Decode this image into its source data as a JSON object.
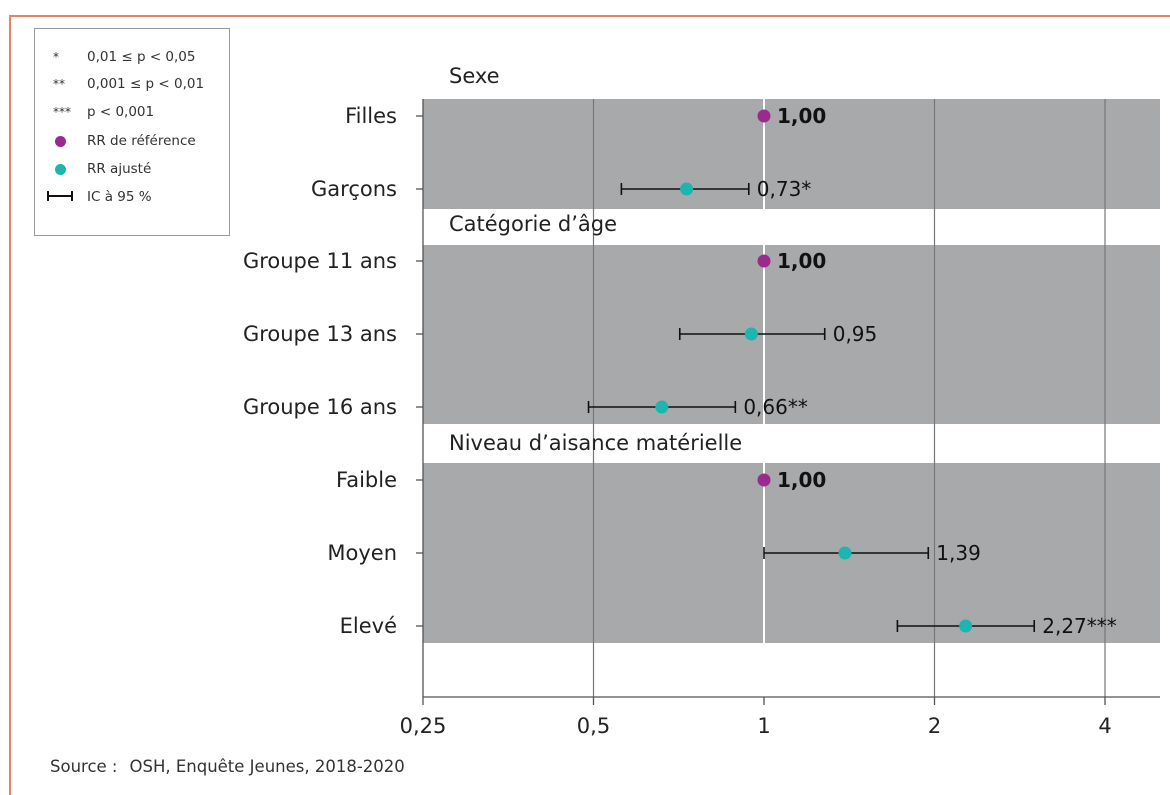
{
  "legend": {
    "items": [
      {
        "key": "*",
        "label": "0,01 ≤ p < 0,05"
      },
      {
        "key": "**",
        "label": "0,001 ≤ p < 0,01"
      },
      {
        "key": "***",
        "label": "p < 0,001"
      },
      {
        "key": "dot-ref",
        "label": "RR de référence"
      },
      {
        "key": "dot-adj",
        "label": "RR ajusté"
      },
      {
        "key": "ci",
        "label": "IC à 95 %"
      }
    ]
  },
  "source": {
    "prefix": "Source :",
    "text": "OSH, Enquête Jeunes, 2018-2020"
  },
  "colors": {
    "reference": "#9b2a8e",
    "adjusted": "#1db5b0",
    "band": "#a8a9ab",
    "frame": "#e8826a"
  },
  "chart_data": {
    "type": "scatter",
    "x_scale": "log2",
    "xlim": [
      0.25,
      5.2
    ],
    "x_ticks": [
      {
        "value": 0.25,
        "label": "0,25"
      },
      {
        "value": 0.5,
        "label": "0,5"
      },
      {
        "value": 1,
        "label": "1"
      },
      {
        "value": 2,
        "label": "2"
      },
      {
        "value": 4,
        "label": "4"
      }
    ],
    "groups": [
      {
        "title": "Sexe",
        "rows": [
          {
            "label": "Filles",
            "rr": 1.0,
            "ci": null,
            "text": "1,00",
            "reference": true
          },
          {
            "label": "Garçons",
            "rr": 0.73,
            "ci": [
              0.56,
              0.94
            ],
            "text": "0,73*",
            "reference": false
          }
        ]
      },
      {
        "title": "Catégorie d’âge",
        "rows": [
          {
            "label": "Groupe 11 ans",
            "rr": 1.0,
            "ci": null,
            "text": "1,00",
            "reference": true
          },
          {
            "label": "Groupe 13 ans",
            "rr": 0.95,
            "ci": [
              0.71,
              1.28
            ],
            "text": "0,95",
            "reference": false
          },
          {
            "label": "Groupe 16 ans",
            "rr": 0.66,
            "ci": [
              0.49,
              0.89
            ],
            "text": "0,66**",
            "reference": false
          }
        ]
      },
      {
        "title": "Niveau d’aisance matérielle",
        "rows": [
          {
            "label": "Faible",
            "rr": 1.0,
            "ci": null,
            "text": "1,00",
            "reference": true
          },
          {
            "label": "Moyen",
            "rr": 1.39,
            "ci": [
              1.0,
              1.95
            ],
            "text": "1,39",
            "reference": false
          },
          {
            "label": "Elevé",
            "rr": 2.27,
            "ci": [
              1.72,
              3.0
            ],
            "text": "2,27***",
            "reference": false
          }
        ]
      }
    ]
  }
}
